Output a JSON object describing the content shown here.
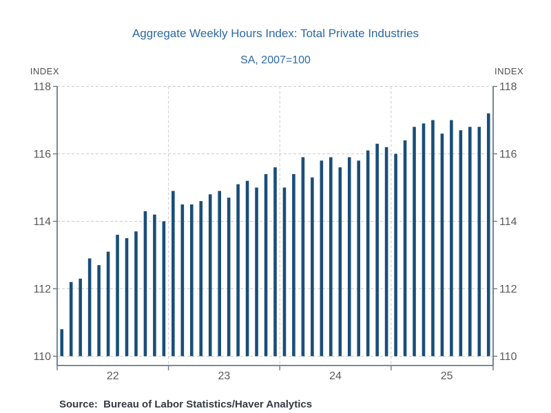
{
  "title": "Aggregate Weekly Hours Index: Total Private Industries",
  "subtitle": "SA, 2007=100",
  "y_axis_unit_left": "INDEX",
  "y_axis_unit_right": "INDEX",
  "source_note": "Source:  Bureau of Labor Statistics/Haver Analytics",
  "colors": {
    "bar": "#1a4e78",
    "title": "#2b68a5",
    "frame": "#64798a",
    "grid": "#cbcbcb",
    "tick_label": "#595959",
    "axis_unit": "#4d4d4d",
    "source": "#333a42",
    "background": "#ffffff"
  },
  "chart_data": {
    "type": "bar",
    "title": "Aggregate Weekly Hours Index: Total Private Industries",
    "subtitle": "SA, 2007=100",
    "ylabel_left": "INDEX",
    "ylabel_right": "INDEX",
    "frequency": "monthly",
    "ylim": [
      110,
      118
    ],
    "yticks": [
      110,
      112,
      114,
      116,
      118
    ],
    "grid": true,
    "legend": "none",
    "x_year_labels": [
      "22",
      "23",
      "24",
      "25"
    ],
    "categories": [
      "Jan 2022",
      "Feb 2022",
      "Mar 2022",
      "Apr 2022",
      "May 2022",
      "Jun 2022",
      "Jul 2022",
      "Aug 2022",
      "Sep 2022",
      "Oct 2022",
      "Nov 2022",
      "Dec 2022",
      "Jan 2023",
      "Feb 2023",
      "Mar 2023",
      "Apr 2023",
      "May 2023",
      "Jun 2023",
      "Jul 2023",
      "Aug 2023",
      "Sep 2023",
      "Oct 2023",
      "Nov 2023",
      "Dec 2023",
      "Jan 2024",
      "Feb 2024",
      "Mar 2024",
      "Apr 2024",
      "May 2024",
      "Jun 2024",
      "Jul 2024",
      "Aug 2024",
      "Sep 2024",
      "Oct 2024",
      "Nov 2024",
      "Dec 2024",
      "Jan 2025",
      "Feb 2025",
      "Mar 2025",
      "Apr 2025",
      "May 2025",
      "Jun 2025",
      "Jul 2025",
      "Aug 2025",
      "Sep 2025",
      "Oct 2025",
      "Nov 2025"
    ],
    "values": [
      110.8,
      112.2,
      112.3,
      112.9,
      112.7,
      113.1,
      113.6,
      113.5,
      113.7,
      114.3,
      114.2,
      114.0,
      114.9,
      114.5,
      114.5,
      114.6,
      114.8,
      114.9,
      114.7,
      115.1,
      115.2,
      115.0,
      115.4,
      115.6,
      115.0,
      115.4,
      115.9,
      115.3,
      115.8,
      115.9,
      115.6,
      115.9,
      115.8,
      116.1,
      116.3,
      116.2,
      116.0,
      116.4,
      116.8,
      116.9,
      117.0,
      116.6,
      117.0,
      116.7,
      116.8,
      116.8,
      117.2
    ]
  }
}
